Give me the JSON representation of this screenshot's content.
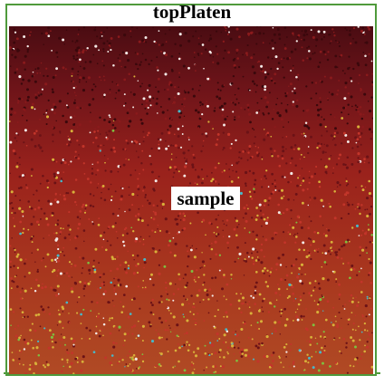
{
  "labels": {
    "top_platen": "topPlaten",
    "sample": "sample"
  },
  "colors": {
    "frame": "#4f9a3c",
    "top_band": "#5a0f14",
    "mid_band": "#9b1f1b",
    "low_band": "#c0582a",
    "grain_highlight": "#d8c240",
    "grain_accent_green": "#7fbf3f",
    "grain_accent_cyan": "#47b8c8"
  },
  "icons": {
    "particle": "particle-dot"
  }
}
